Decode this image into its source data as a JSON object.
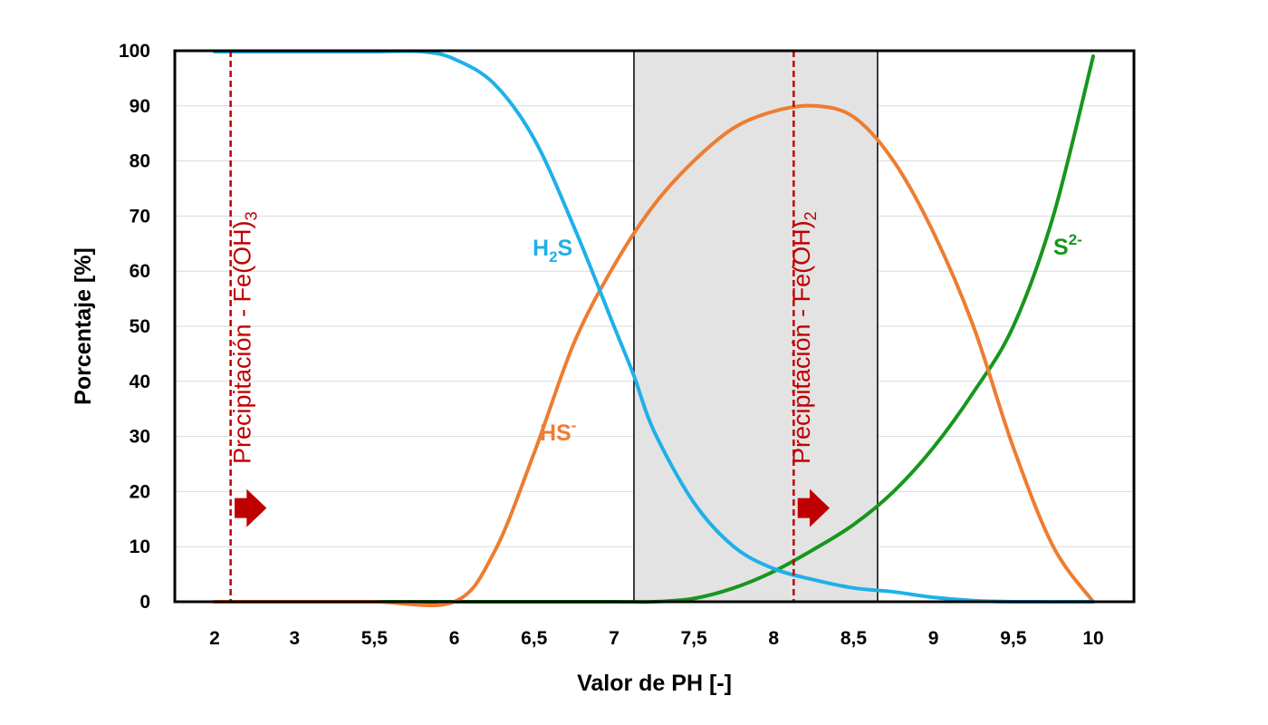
{
  "chart_data": {
    "type": "line",
    "xlabel": "Valor de PH [-]",
    "ylabel": "Porcentaje [%]",
    "ylim": [
      0,
      100
    ],
    "yticks": [
      0,
      10,
      20,
      30,
      40,
      50,
      60,
      70,
      80,
      90,
      100
    ],
    "categories": [
      "2",
      "3",
      "5,5",
      "6",
      "6,5",
      "7",
      "7,5",
      "8",
      "8,5",
      "9",
      "9,5",
      "10"
    ],
    "grid": "horizontal",
    "shaded_region": {
      "from_index": 5.25,
      "to_index": 8.3,
      "color": "#e3e3e3"
    },
    "series": [
      {
        "name": "H2S",
        "label_main": "H",
        "label_sub": "2",
        "label_tail": "S",
        "color": "#1fb0e8",
        "points": [
          [
            0,
            100
          ],
          [
            1,
            100
          ],
          [
            2,
            100
          ],
          [
            2.6,
            100
          ],
          [
            3,
            98.5
          ],
          [
            3.5,
            94
          ],
          [
            4,
            84
          ],
          [
            4.5,
            68
          ],
          [
            5,
            50
          ],
          [
            5.25,
            41
          ],
          [
            5.5,
            31
          ],
          [
            6,
            18
          ],
          [
            6.5,
            10
          ],
          [
            7,
            6
          ],
          [
            7.5,
            4
          ],
          [
            8,
            2.5
          ],
          [
            8.5,
            1.8
          ],
          [
            9,
            0.8
          ],
          [
            9.5,
            0.2
          ],
          [
            10,
            0
          ],
          [
            11,
            0
          ]
        ]
      },
      {
        "name": "HS-",
        "label_main": "HS",
        "label_sup": "-",
        "color": "#ed7d31",
        "points": [
          [
            0,
            0
          ],
          [
            1,
            0
          ],
          [
            2,
            0
          ],
          [
            3,
            0
          ],
          [
            3.5,
            9
          ],
          [
            4,
            27
          ],
          [
            4.5,
            47
          ],
          [
            5,
            61
          ],
          [
            5.5,
            72
          ],
          [
            6,
            80
          ],
          [
            6.5,
            86
          ],
          [
            7,
            89
          ],
          [
            7.5,
            90
          ],
          [
            8,
            88
          ],
          [
            8.5,
            80
          ],
          [
            9,
            67
          ],
          [
            9.5,
            50
          ],
          [
            10,
            28
          ],
          [
            10.5,
            10
          ],
          [
            11,
            0
          ]
        ]
      },
      {
        "name": "S2-",
        "label_main": "S",
        "label_sup": "2-",
        "color": "#17961c",
        "points": [
          [
            0,
            0
          ],
          [
            1,
            0
          ],
          [
            2,
            0
          ],
          [
            3,
            0
          ],
          [
            4,
            0
          ],
          [
            5,
            0
          ],
          [
            5.5,
            0
          ],
          [
            6,
            0.6
          ],
          [
            6.5,
            2.5
          ],
          [
            7,
            5.5
          ],
          [
            7.5,
            9.5
          ],
          [
            8,
            14
          ],
          [
            8.5,
            20
          ],
          [
            9,
            28
          ],
          [
            9.5,
            38
          ],
          [
            10,
            50
          ],
          [
            10.5,
            70
          ],
          [
            11,
            99
          ]
        ]
      }
    ],
    "annotations": [
      {
        "text": "Precipitación - Fe(OH)",
        "subscript": "3",
        "line_x_index": 0.2,
        "label_x_index": 0.45,
        "arrow_from_index": 0.25,
        "arrow_to_index": 0.65,
        "arrow_y": 17,
        "color": "#c00000"
      },
      {
        "text": "Precipitación - Fe(OH)",
        "subscript": "2",
        "line_x_index": 7.25,
        "label_x_index": 7.45,
        "arrow_from_index": 7.3,
        "arrow_to_index": 7.7,
        "arrow_y": 17,
        "color": "#c00000"
      }
    ]
  }
}
